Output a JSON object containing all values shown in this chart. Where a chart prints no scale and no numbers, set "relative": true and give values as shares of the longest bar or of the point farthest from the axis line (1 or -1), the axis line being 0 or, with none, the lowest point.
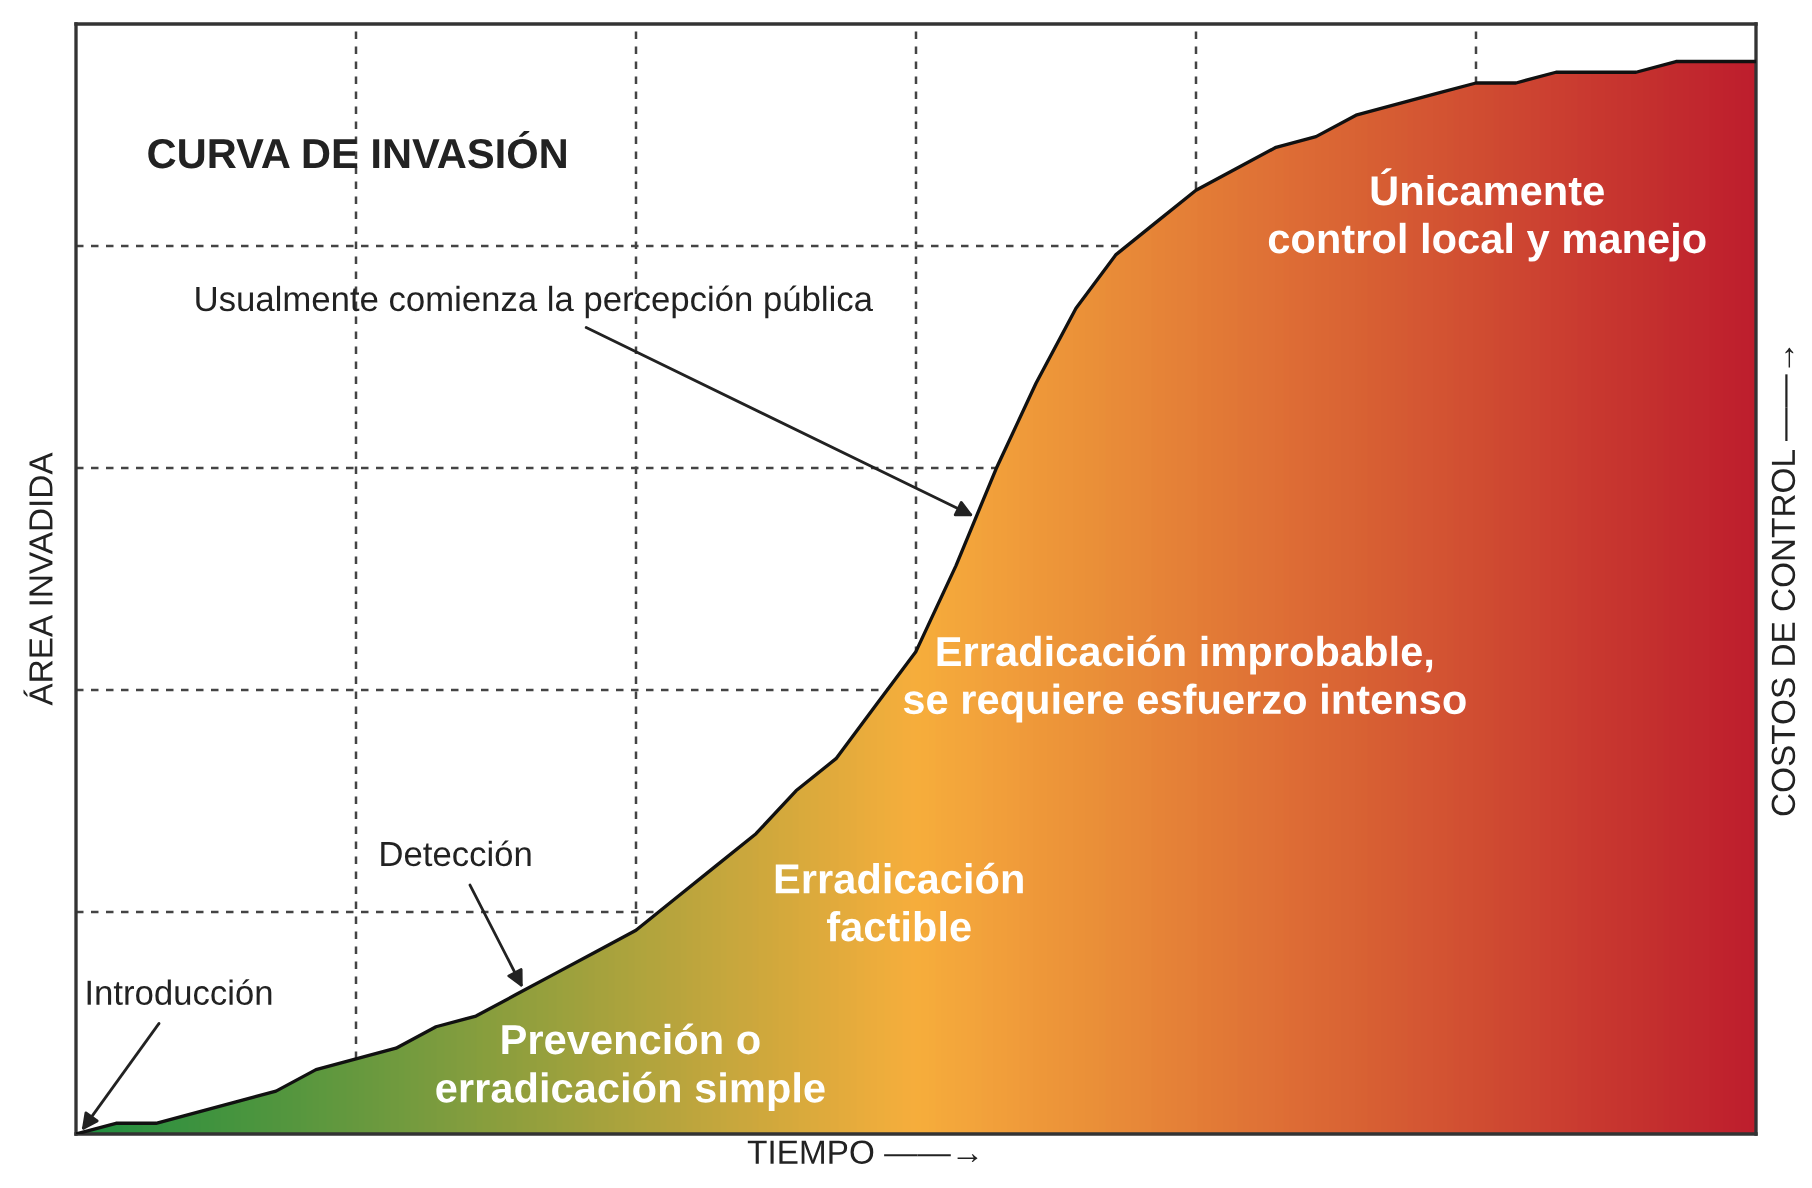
{
  "chart_data": {
    "type": "area",
    "relative": true,
    "title": "CURVA DE INVASIÓN",
    "xlabel": "TIEMPO ——→",
    "ylabel": "ÁREA INVADIDA",
    "y2label": "COSTOS DE CONTROL ——→",
    "grid": true,
    "categories": [
      null,
      null,
      null,
      null,
      null,
      null,
      null,
      null,
      null,
      null,
      null,
      null,
      null,
      null,
      null,
      null,
      null,
      null,
      null,
      null,
      null,
      null,
      null,
      null,
      null,
      null,
      null,
      null,
      null,
      null,
      null,
      null,
      null,
      null,
      null,
      null,
      null,
      null,
      null,
      null,
      null,
      null,
      null
    ],
    "series": [
      {
        "color": "#111111",
        "colors": [
          "#1f8f3f",
          "#29903f",
          "#34923f",
          "#3e933f",
          "#48953e",
          "#52963e",
          "#5d983e",
          "#67993e",
          "#719b3e",
          "#7c9c3e",
          "#869e3e",
          "#909f3d",
          "#9aa13d",
          "#a5a23d",
          "#afa43d",
          "#b9a53d",
          "#c4a73d",
          "#cea83d",
          "#d8aa3c",
          "#e2ab3c",
          "#edad3c",
          "#f7ae3c",
          "#f4a73b",
          "#f2a03b",
          "#ef993a",
          "#ec9339",
          "#e98c38",
          "#e78538",
          "#e47e37",
          "#e17736",
          "#df7036",
          "#dc6935",
          "#d96334",
          "#d65c33",
          "#d45533",
          "#d14e32",
          "#ce4731",
          "#cc4031",
          "#c93930",
          "#c6332f",
          "#c32c2e",
          "#c1252e",
          "#be1e2d"
        ],
        "values": [
          0,
          0.01,
          0.01,
          0.02,
          0.03,
          0.04,
          0.06,
          0.07,
          0.08,
          0.1,
          0.11,
          0.13,
          0.15,
          0.17,
          0.19,
          0.22,
          0.25,
          0.28,
          0.32,
          0.35,
          0.4,
          0.45,
          0.53,
          0.62,
          0.7,
          0.77,
          0.82,
          0.85,
          0.88,
          0.9,
          0.92,
          0.93,
          0.95,
          0.96,
          0.97,
          0.98,
          0.98,
          0.99,
          0.99,
          0.99,
          1.0,
          1.0,
          1.0
        ]
      }
    ],
    "annotations": [
      "Usualmente comienza la percepción pública",
      "Detección",
      "Introducción",
      "Prevención o\nerradicación simple",
      "Erradicación\nfactible",
      "Erradicación improbable,\nse requiere esfuerzo intenso",
      "Únicamente\ncontrol local y manejo"
    ]
  }
}
